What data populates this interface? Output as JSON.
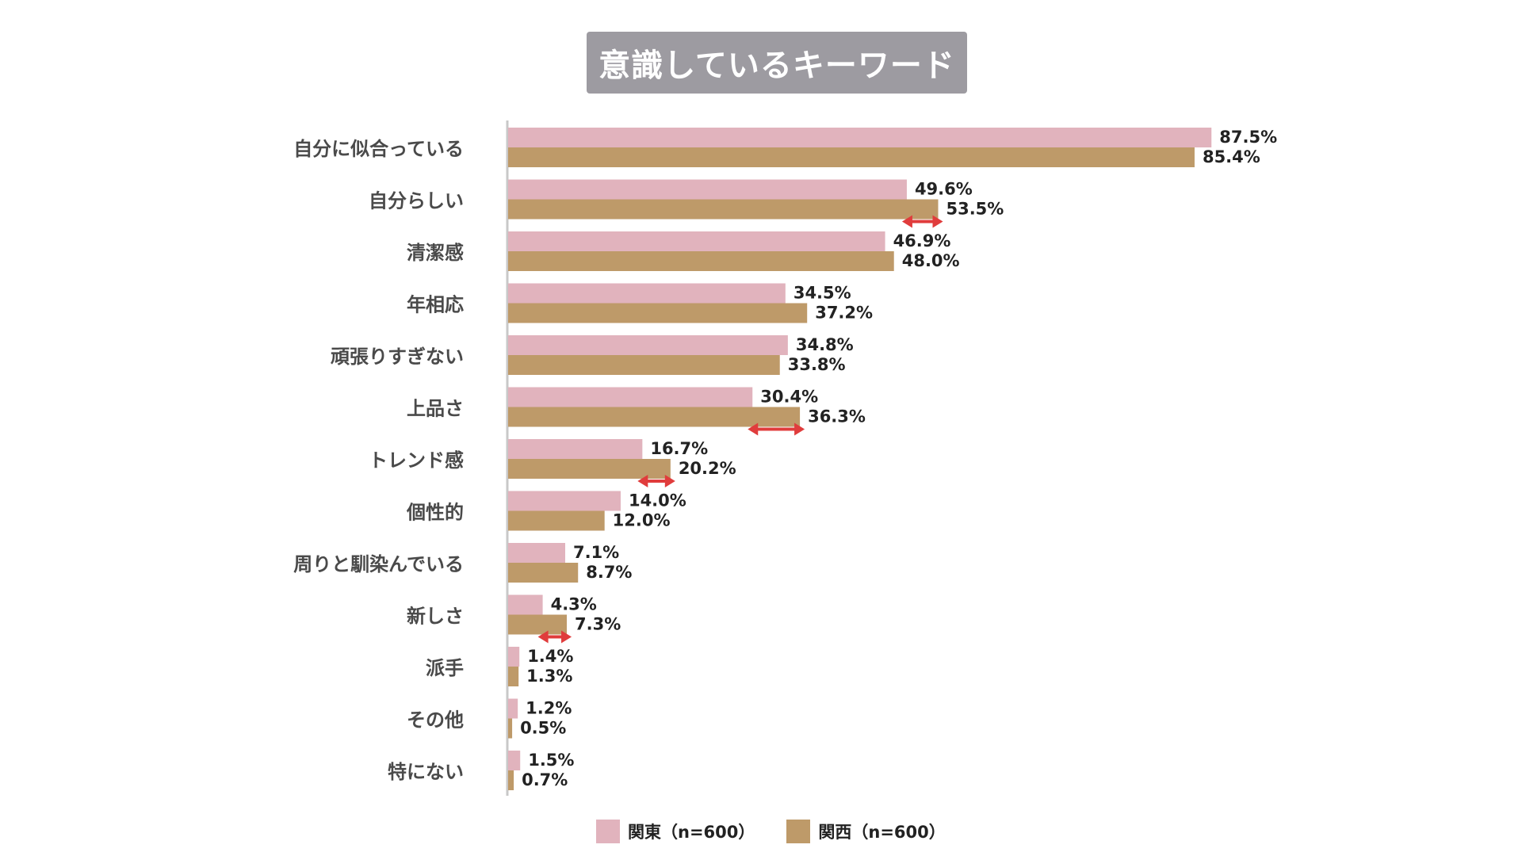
{
  "chart_data": {
    "type": "bar",
    "orientation": "horizontal",
    "title": "意識しているキーワード",
    "categories": [
      "自分に似合っている",
      "自分らしい",
      "清潔感",
      "年相応",
      "頑張りすぎない",
      "上品さ",
      "トレンド感",
      "個性的",
      "周りと馴染んでいる",
      "新しさ",
      "派手",
      "その他",
      "特にない"
    ],
    "series": [
      {
        "name": "関東（n=600）",
        "color": "#e1b3bd",
        "values": [
          87.5,
          49.6,
          46.9,
          34.5,
          34.8,
          30.4,
          16.7,
          14.0,
          7.1,
          4.3,
          1.4,
          1.2,
          1.5
        ],
        "labels": [
          "87.5%",
          "49.6%",
          "46.9%",
          "34.5%",
          "34.8%",
          "30.4%",
          "16.7%",
          "14.0%",
          "7.1%",
          "4.3%",
          "1.4%",
          "1.2%",
          "1.5%"
        ]
      },
      {
        "name": "関西（n=600）",
        "color": "#be9a69",
        "values": [
          85.4,
          53.5,
          48.0,
          37.2,
          33.8,
          36.3,
          20.2,
          12.0,
          8.7,
          7.3,
          1.3,
          0.5,
          0.7
        ],
        "labels": [
          "85.4%",
          "53.5%",
          "48.0%",
          "37.2%",
          "33.8%",
          "36.3%",
          "20.2%",
          "12.0%",
          "8.7%",
          "7.3%",
          "1.3%",
          "0.5%",
          "0.7%"
        ]
      }
    ],
    "xlim": [
      0,
      100
    ],
    "grid": false,
    "legend_position": "bottom-center",
    "highlight_color": "#e03c3c",
    "highlighted_differences": [
      "自分らしい",
      "上品さ",
      "トレンド感",
      "新しさ"
    ]
  }
}
